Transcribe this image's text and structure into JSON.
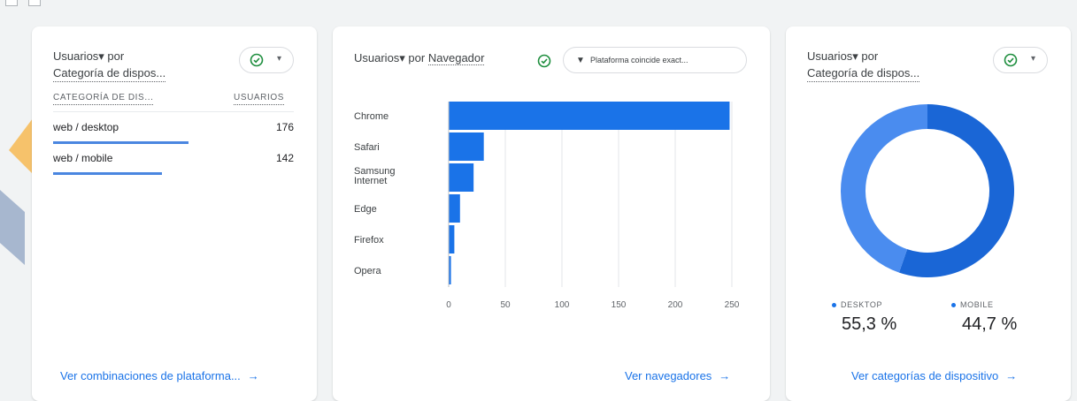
{
  "colors": {
    "accent": "#1a73e8",
    "bar": "#1a73e8",
    "donut_desktop": "#1a66d6",
    "donut_mobile": "#4a8cef",
    "check": "#1e8e3e"
  },
  "card1": {
    "title_line1": "Usuarios▾ por",
    "title_line2": "Categoría de dispos...",
    "col_category": "CATEGORÍA DE DIS...",
    "col_users": "USUARIOS",
    "rows": [
      {
        "label": "web / desktop",
        "value": "176",
        "share": 176
      },
      {
        "label": "web / mobile",
        "value": "142",
        "share": 142
      }
    ],
    "link": "Ver combinaciones de plataforma...",
    "check_icon": "check-circle-icon",
    "caret": "▾"
  },
  "card2": {
    "title_prefix": "Usuarios▾ por",
    "title_dim": "Navegador",
    "filter": "Plataforma coincide exact...",
    "filter_icon": "filter-icon",
    "link": "Ver navegadores",
    "chart_data": {
      "type": "bar",
      "orientation": "horizontal",
      "categories": [
        "Chrome",
        "Safari",
        "Samsung Internet",
        "Edge",
        "Firefox",
        "Opera"
      ],
      "values": [
        248,
        31,
        22,
        10,
        5,
        2
      ],
      "xticks": [
        "0",
        "50",
        "100",
        "150",
        "200",
        "250"
      ],
      "xlim": [
        0,
        250
      ],
      "grid": true
    }
  },
  "card3": {
    "title_line1": "Usuarios▾ por",
    "title_line2": "Categoría de dispos...",
    "chart_data": {
      "type": "pie",
      "donut": true,
      "categories": [
        "DESKTOP",
        "MOBILE"
      ],
      "values": [
        55.3,
        44.7
      ],
      "labels": [
        "55,3 %",
        "44,7 %"
      ]
    },
    "legend_desktop": "DESKTOP",
    "legend_mobile": "MOBILE",
    "pct_desktop": "55,3 %",
    "pct_mobile": "44,7 %",
    "link": "Ver categorías de dispositivo"
  },
  "arrow": "→"
}
